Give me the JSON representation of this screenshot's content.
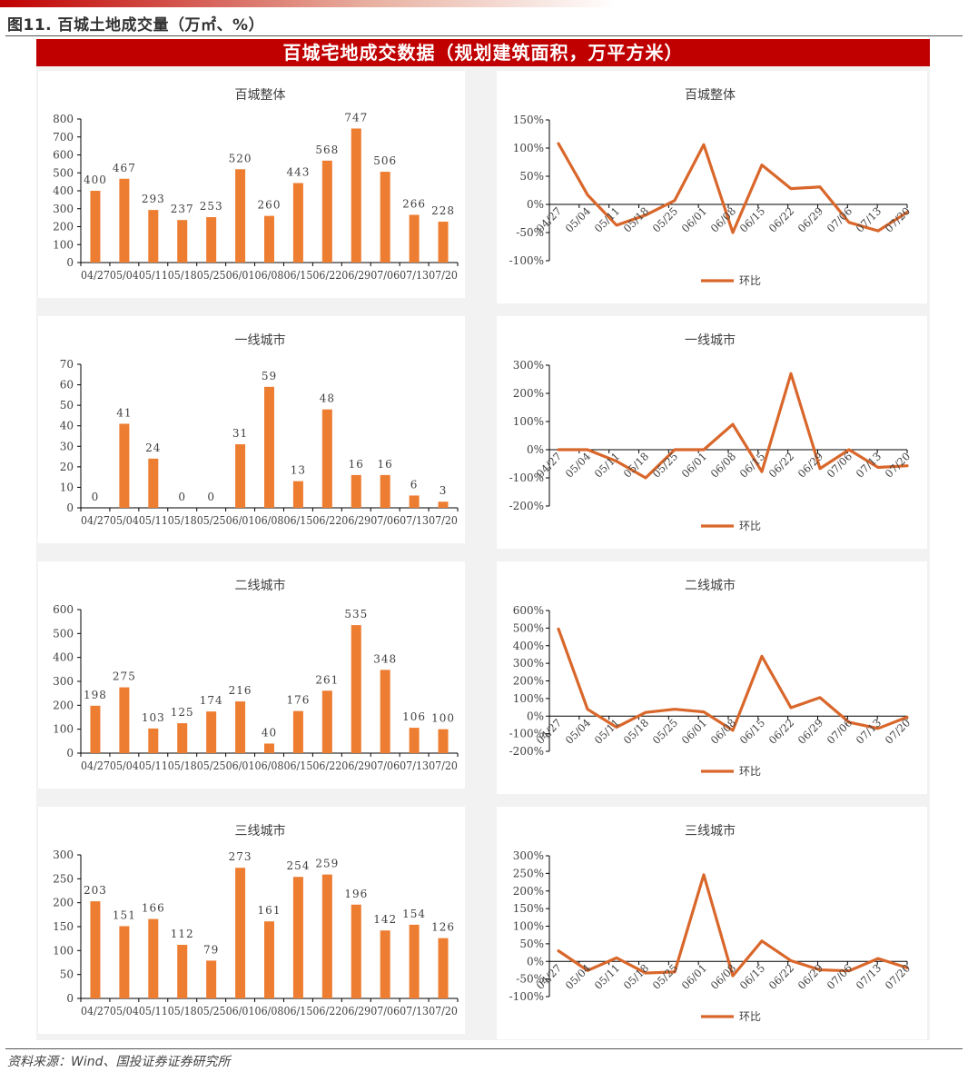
{
  "figure_title": "图11. 百城土地成交量（万㎡、%）",
  "banner": "百城宅地成交数据（规划建筑面积，万平方米）",
  "source": "资料来源：Wind、国投证券证券研究所",
  "colors": {
    "bar": "#ED7D31",
    "line": "#D9672B",
    "banner": "#c00000",
    "axis": "#000000",
    "text": "#404040"
  },
  "chart_data": [
    {
      "type": "bar",
      "title": "百城整体",
      "categories": [
        "04/27",
        "05/04",
        "05/11",
        "05/18",
        "05/25",
        "06/01",
        "06/08",
        "06/15",
        "06/22",
        "06/29",
        "07/06",
        "07/13",
        "07/20"
      ],
      "values": [
        400,
        467,
        293,
        237,
        253,
        520,
        260,
        443,
        568,
        747,
        506,
        266,
        228
      ],
      "ylim": [
        0,
        800
      ],
      "yticks": [
        0,
        100,
        200,
        300,
        400,
        500,
        600,
        700,
        800
      ]
    },
    {
      "type": "line",
      "title": "百城整体",
      "legend": "环比",
      "categories": [
        "04/27",
        "05/04",
        "05/11",
        "05/18",
        "05/25",
        "06/01",
        "06/08",
        "06/15",
        "06/22",
        "06/29",
        "07/06",
        "07/13",
        "07/20"
      ],
      "values": [
        108,
        17,
        -37,
        -19,
        7,
        106,
        -50,
        70,
        28,
        31,
        -32,
        -47,
        -14
      ],
      "ylim": [
        -100,
        150
      ],
      "yticks": [
        -100,
        -50,
        0,
        50,
        100,
        150
      ],
      "y_unit": "%"
    },
    {
      "type": "bar",
      "title": "一线城市",
      "categories": [
        "04/27",
        "05/04",
        "05/11",
        "05/18",
        "05/25",
        "06/01",
        "06/08",
        "06/15",
        "06/22",
        "06/29",
        "07/06",
        "07/13",
        "07/20"
      ],
      "values": [
        0,
        41,
        24,
        0,
        0,
        31,
        59,
        13,
        48,
        16,
        16,
        6,
        3
      ],
      "ylim": [
        0,
        70
      ],
      "yticks": [
        0,
        10,
        20,
        30,
        40,
        50,
        60,
        70
      ]
    },
    {
      "type": "line",
      "title": "一线城市",
      "legend": "环比",
      "categories": [
        "04/27",
        "05/04",
        "05/11",
        "05/18",
        "05/25",
        "06/01",
        "06/08",
        "06/15",
        "06/22",
        "06/29",
        "07/06",
        "07/13",
        "07/20"
      ],
      "values": [
        0,
        0,
        -41,
        -100,
        0,
        0,
        90,
        -78,
        270,
        -67,
        0,
        -63,
        -57
      ],
      "ylim": [
        -200,
        300
      ],
      "yticks": [
        -200,
        -100,
        0,
        100,
        200,
        300
      ],
      "y_unit": "%"
    },
    {
      "type": "bar",
      "title": "二线城市",
      "categories": [
        "04/27",
        "05/04",
        "05/11",
        "05/18",
        "05/25",
        "06/01",
        "06/08",
        "06/15",
        "06/22",
        "06/29",
        "07/06",
        "07/13",
        "07/20"
      ],
      "values": [
        198,
        275,
        103,
        125,
        174,
        216,
        40,
        176,
        261,
        535,
        348,
        106,
        100
      ],
      "ylim": [
        0,
        600
      ],
      "yticks": [
        0,
        100,
        200,
        300,
        400,
        500,
        600
      ]
    },
    {
      "type": "line",
      "title": "二线城市",
      "legend": "环比",
      "categories": [
        "04/27",
        "05/04",
        "05/11",
        "05/18",
        "05/25",
        "06/01",
        "06/08",
        "06/15",
        "06/22",
        "06/29",
        "07/06",
        "07/13",
        "07/20"
      ],
      "values": [
        495,
        39,
        -63,
        21,
        39,
        24,
        -81,
        340,
        48,
        105,
        -35,
        -70,
        -6
      ],
      "ylim": [
        -200,
        600
      ],
      "yticks": [
        -200,
        -100,
        0,
        100,
        200,
        300,
        400,
        500,
        600
      ],
      "y_unit": "%"
    },
    {
      "type": "bar",
      "title": "三线城市",
      "categories": [
        "04/27",
        "05/04",
        "05/11",
        "05/18",
        "05/25",
        "06/01",
        "06/08",
        "06/15",
        "06/22",
        "06/29",
        "07/06",
        "07/13",
        "07/20"
      ],
      "values": [
        203,
        151,
        166,
        112,
        79,
        273,
        161,
        254,
        259,
        196,
        142,
        154,
        126
      ],
      "ylim": [
        0,
        300
      ],
      "yticks": [
        0,
        50,
        100,
        150,
        200,
        250,
        300
      ]
    },
    {
      "type": "line",
      "title": "三线城市",
      "legend": "环比",
      "categories": [
        "04/27",
        "05/04",
        "05/11",
        "05/18",
        "05/25",
        "06/01",
        "06/08",
        "06/15",
        "06/22",
        "06/29",
        "07/06",
        "07/13",
        "07/20"
      ],
      "values": [
        30,
        -26,
        10,
        -33,
        -30,
        246,
        -41,
        58,
        2,
        -24,
        -27,
        8,
        -18
      ],
      "ylim": [
        -100,
        300
      ],
      "yticks": [
        -100,
        -50,
        0,
        50,
        100,
        150,
        200,
        250,
        300
      ],
      "y_unit": "%"
    }
  ]
}
